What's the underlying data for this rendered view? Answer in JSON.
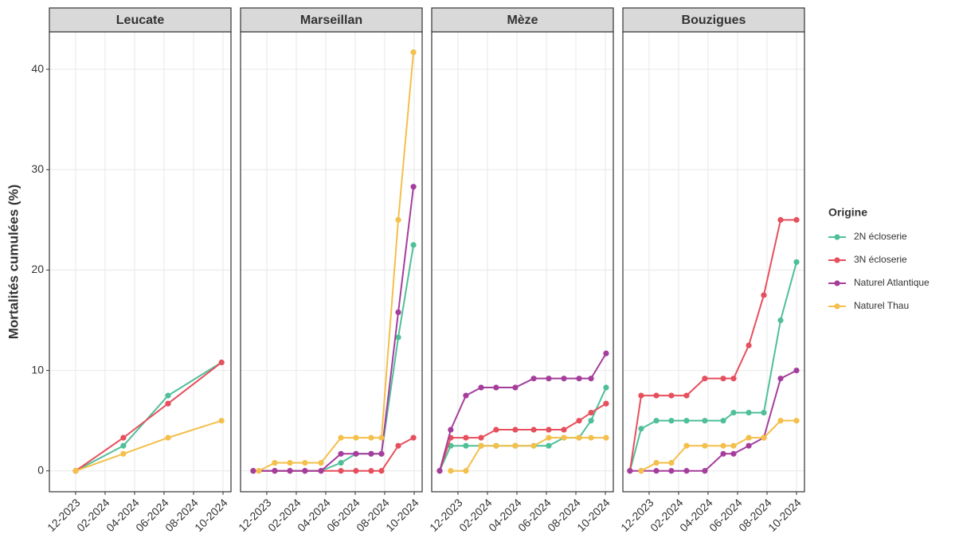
{
  "y_axis_label": "Mortalités cumulées (%)",
  "legend_title": "Origine",
  "chart_data": [
    {
      "type": "line",
      "title": "Leucate",
      "xlim": [
        -1.78,
        10.54
      ],
      "xticks": [
        {
          "value": 0,
          "label": "12-2023"
        },
        {
          "value": 2,
          "label": "02-2024"
        },
        {
          "value": 4,
          "label": "04-2024"
        },
        {
          "value": 6,
          "label": "06-2024"
        },
        {
          "value": 8,
          "label": "08-2024"
        },
        {
          "value": 10,
          "label": "10-2024"
        }
      ],
      "ylim": [
        -2.08,
        43.73
      ],
      "yticks": [
        0,
        10,
        20,
        30,
        40
      ],
      "series": [
        {
          "name": "2N écloserie",
          "color": "#4fbf98",
          "x": [
            0,
            3.24,
            6.27,
            9.9
          ],
          "values": [
            0,
            2.5,
            7.5,
            10.8
          ]
        },
        {
          "name": "3N écloserie",
          "color": "#e64f5c",
          "x": [
            0,
            3.24,
            6.27,
            9.9
          ],
          "values": [
            0,
            3.3,
            6.7,
            10.8
          ]
        },
        {
          "name": "Naturel Thau",
          "color": "#f4bf4a",
          "x": [
            0,
            3.24,
            6.27,
            9.9
          ],
          "values": [
            0,
            1.7,
            3.3,
            5
          ]
        }
      ]
    },
    {
      "type": "line",
      "title": "Marseillan",
      "xlim": [
        -1.78,
        10.54
      ],
      "xticks": [
        {
          "value": 0,
          "label": "12-2023"
        },
        {
          "value": 2,
          "label": "02-2024"
        },
        {
          "value": 4,
          "label": "04-2024"
        },
        {
          "value": 6,
          "label": "06-2024"
        },
        {
          "value": 8,
          "label": "08-2024"
        },
        {
          "value": 10,
          "label": "10-2024"
        }
      ],
      "ylim": [
        -2.08,
        43.73
      ],
      "yticks": [
        0,
        10,
        20,
        30,
        40
      ],
      "series": [
        {
          "name": "2N écloserie",
          "color": "#4fbf98",
          "x": [
            -0.92,
            0.54,
            1.57,
            2.59,
            3.68,
            5.03,
            6.05,
            7.08,
            7.78,
            8.92,
            9.95
          ],
          "values": [
            0,
            0,
            0,
            0,
            0,
            0.8,
            1.7,
            1.7,
            1.7,
            13.3,
            22.5
          ]
        },
        {
          "name": "3N écloserie",
          "color": "#e64f5c",
          "x": [
            -0.92,
            0.54,
            1.57,
            2.59,
            3.68,
            5.03,
            6.05,
            7.08,
            7.78,
            8.92,
            9.95
          ],
          "values": [
            0,
            0,
            0,
            0,
            0,
            0,
            0,
            0,
            0,
            2.5,
            3.3
          ]
        },
        {
          "name": "Naturel Atlantique",
          "color": "#a53d9c",
          "x": [
            -0.92,
            0.54,
            1.57,
            2.59,
            3.68,
            5.03,
            6.05,
            7.08,
            7.78,
            8.92,
            9.95
          ],
          "values": [
            0,
            0,
            0,
            0,
            0,
            1.7,
            1.7,
            1.7,
            1.7,
            15.8,
            28.3
          ]
        },
        {
          "name": "Naturel Thau",
          "color": "#f4bf4a",
          "x": [
            -0.54,
            0.54,
            1.57,
            2.59,
            3.68,
            5.03,
            6.05,
            7.08,
            7.78,
            8.92,
            9.95
          ],
          "values": [
            0,
            0.8,
            0.8,
            0.8,
            0.8,
            3.3,
            3.3,
            3.3,
            3.3,
            25,
            41.7
          ]
        }
      ]
    },
    {
      "type": "line",
      "title": "Mèze",
      "xlim": [
        -1.78,
        10.54
      ],
      "xticks": [
        {
          "value": 0,
          "label": "12-2023"
        },
        {
          "value": 2,
          "label": "02-2024"
        },
        {
          "value": 4,
          "label": "04-2024"
        },
        {
          "value": 6,
          "label": "06-2024"
        },
        {
          "value": 8,
          "label": "08-2024"
        },
        {
          "value": 10,
          "label": "10-2024"
        }
      ],
      "ylim": [
        -2.08,
        43.73
      ],
      "yticks": [
        0,
        10,
        20,
        30,
        40
      ],
      "series": [
        {
          "name": "2N écloserie",
          "color": "#4fbf98",
          "x": [
            -1.24,
            -0.49,
            0.54,
            1.57,
            2.59,
            3.89,
            5.14,
            6.16,
            7.19,
            8.22,
            9.03,
            10.05
          ],
          "values": [
            0,
            2.5,
            2.5,
            2.5,
            2.5,
            2.5,
            2.5,
            2.5,
            3.3,
            3.3,
            5,
            8.3
          ]
        },
        {
          "name": "3N écloserie",
          "color": "#e64f5c",
          "x": [
            -1.24,
            -0.49,
            0.54,
            1.57,
            2.59,
            3.89,
            5.14,
            6.16,
            7.19,
            8.22,
            9.03,
            10.05
          ],
          "values": [
            0,
            3.3,
            3.3,
            3.3,
            4.1,
            4.1,
            4.1,
            4.1,
            4.1,
            5,
            5.8,
            6.7
          ]
        },
        {
          "name": "Naturel Atlantique",
          "color": "#a53d9c",
          "x": [
            -1.24,
            -0.49,
            0.54,
            1.57,
            2.59,
            3.89,
            5.14,
            6.16,
            7.19,
            8.22,
            9.03,
            10.05
          ],
          "values": [
            0,
            4.1,
            7.5,
            8.3,
            8.3,
            8.3,
            9.2,
            9.2,
            9.2,
            9.2,
            9.2,
            11.7
          ]
        },
        {
          "name": "Naturel Thau",
          "color": "#f4bf4a",
          "x": [
            -0.49,
            0.54,
            1.57,
            2.59,
            3.89,
            5.14,
            6.16,
            7.19,
            8.22,
            9.03,
            10.05
          ],
          "values": [
            0,
            0,
            2.5,
            2.5,
            2.5,
            2.5,
            3.3,
            3.3,
            3.3,
            3.3,
            3.3
          ]
        }
      ]
    },
    {
      "type": "line",
      "title": "Bouzigues",
      "xlim": [
        -1.78,
        10.54
      ],
      "xticks": [
        {
          "value": 0,
          "label": "12-2023"
        },
        {
          "value": 2,
          "label": "02-2024"
        },
        {
          "value": 4,
          "label": "04-2024"
        },
        {
          "value": 6,
          "label": "06-2024"
        },
        {
          "value": 8,
          "label": "08-2024"
        },
        {
          "value": 10,
          "label": "10-2024"
        }
      ],
      "ylim": [
        -2.08,
        43.73
      ],
      "yticks": [
        0,
        10,
        20,
        30,
        40
      ],
      "series": [
        {
          "name": "2N écloserie",
          "color": "#4fbf98",
          "x": [
            -1.3,
            -0.54,
            0.49,
            1.51,
            2.54,
            3.78,
            5.03,
            5.73,
            6.76,
            7.78,
            8.92,
            10.0
          ],
          "values": [
            0,
            4.2,
            5,
            5,
            5,
            5,
            5,
            5.8,
            5.8,
            5.8,
            15,
            20.8
          ]
        },
        {
          "name": "3N écloserie",
          "color": "#e64f5c",
          "x": [
            -1.3,
            -0.54,
            0.49,
            1.51,
            2.54,
            3.78,
            5.03,
            5.73,
            6.76,
            7.78,
            8.92,
            10.0
          ],
          "values": [
            0,
            7.5,
            7.5,
            7.5,
            7.5,
            9.2,
            9.2,
            9.2,
            12.5,
            17.5,
            25,
            25
          ]
        },
        {
          "name": "Naturel Atlantique",
          "color": "#a53d9c",
          "x": [
            -1.3,
            -0.54,
            0.49,
            1.51,
            2.54,
            3.78,
            5.03,
            5.73,
            6.76,
            7.78,
            8.92,
            10.0
          ],
          "values": [
            0,
            0,
            0,
            0,
            0,
            0,
            1.7,
            1.7,
            2.5,
            3.3,
            9.2,
            10
          ]
        },
        {
          "name": "Naturel Thau",
          "color": "#f4bf4a",
          "x": [
            -0.54,
            0.49,
            1.51,
            2.54,
            3.78,
            5.03,
            5.73,
            6.76,
            7.78,
            8.92,
            10.0
          ],
          "values": [
            0,
            0.8,
            0.8,
            2.5,
            2.5,
            2.5,
            2.5,
            3.3,
            3.3,
            5,
            5
          ]
        }
      ]
    }
  ]
}
